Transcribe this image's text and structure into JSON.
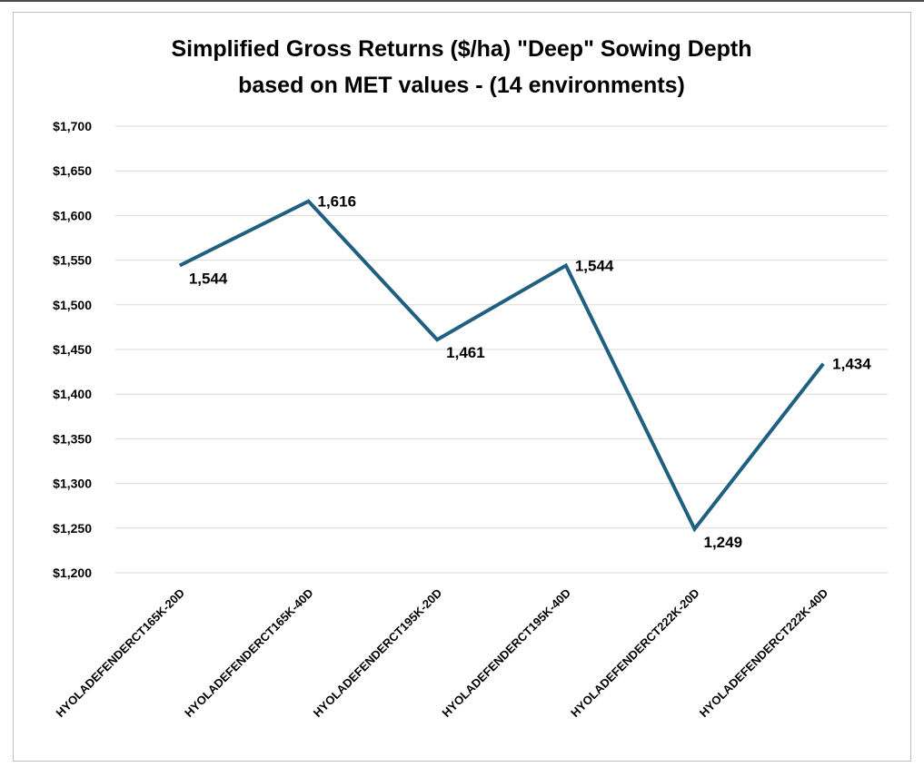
{
  "chart_data": {
    "type": "line",
    "title_lines": [
      "Simplified Gross Returns ($/ha) \"Deep\" Sowing Depth",
      "based on MET values - (14 environments)"
    ],
    "xlabel": "",
    "ylabel": "",
    "categories": [
      "HYOLADEFENDERCT165K-20D",
      "HYOLADEFENDERCT165K-40D",
      "HYOLADEFENDERCT195K-20D",
      "HYOLADEFENDERCT195K-40D",
      "HYOLADEFENDERCT222K-20D",
      "HYOLADEFENDERCT222K-40D"
    ],
    "series": [
      {
        "values": [
          1544,
          1616,
          1461,
          1544,
          1249,
          1434
        ],
        "data_labels": [
          "1,544",
          "1,616",
          "1,461",
          "1,544",
          "1,249",
          "1,434"
        ],
        "color": "#1f5f7f"
      }
    ],
    "ylim": [
      1200,
      1700
    ],
    "yticks": [
      1200,
      1250,
      1300,
      1350,
      1400,
      1450,
      1500,
      1550,
      1600,
      1650,
      1700
    ],
    "ytick_labels": [
      "$1,200",
      "$1,250",
      "$1,300",
      "$1,350",
      "$1,400",
      "$1,450",
      "$1,500",
      "$1,550",
      "$1,600",
      "$1,650",
      "$1,700"
    ],
    "grid": true,
    "legend": "none",
    "gridline_color": "#d9d9d9"
  }
}
